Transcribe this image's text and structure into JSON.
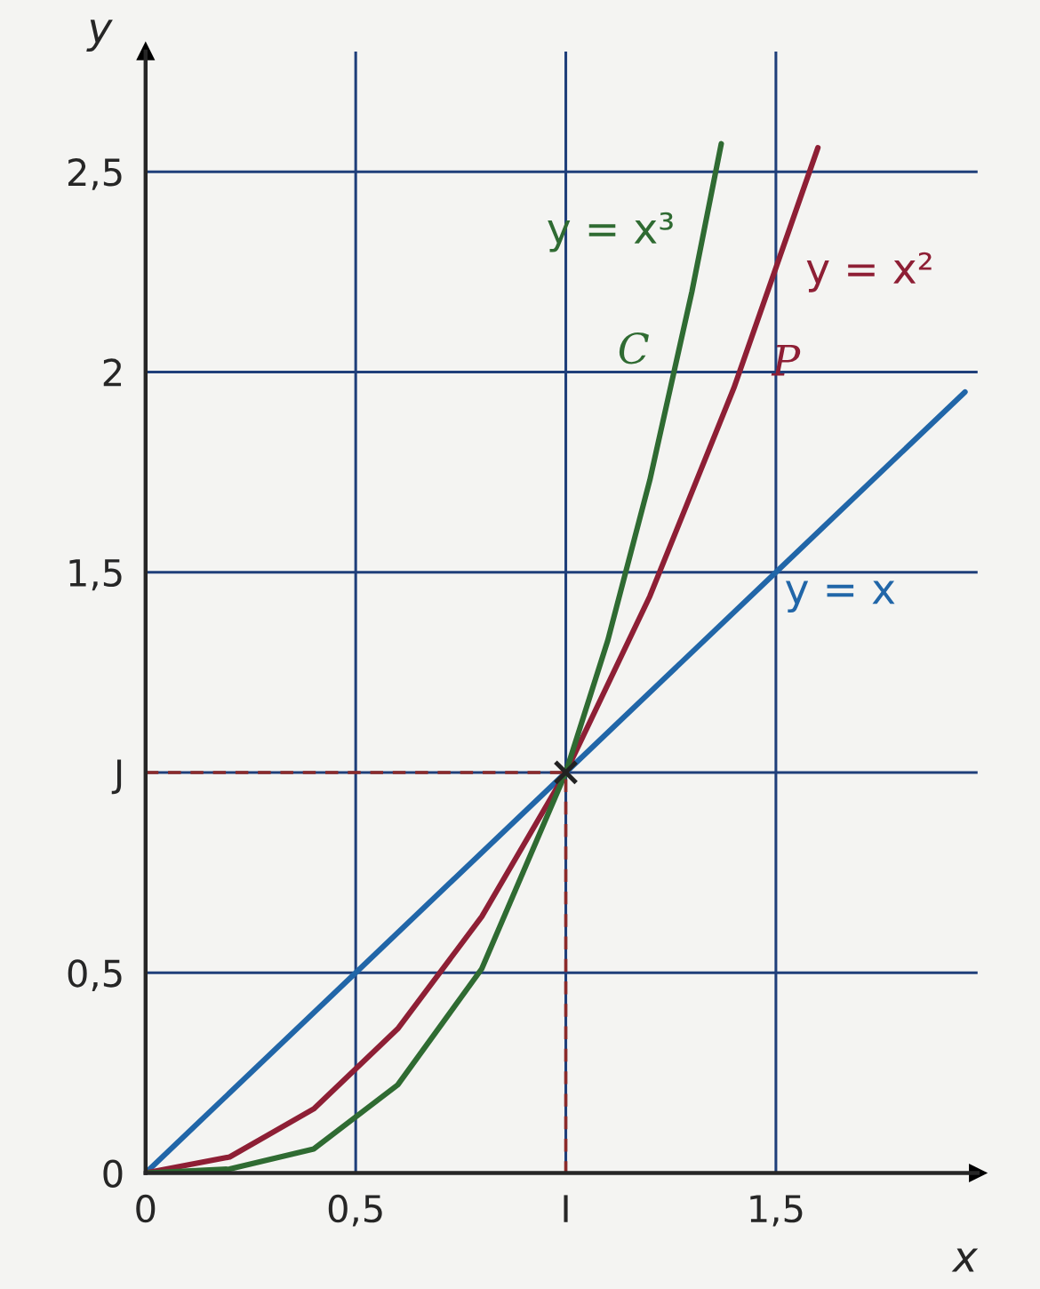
{
  "chart_data": {
    "type": "line",
    "xlabel": "x",
    "ylabel": "y",
    "xlim": [
      0,
      1.98
    ],
    "ylim": [
      0,
      2.8
    ],
    "xticks": [
      0,
      {
        "value": 0.5,
        "label": "0,5"
      },
      {
        "value": 1,
        "label": "I"
      },
      {
        "value": 1.5,
        "label": "1,5"
      }
    ],
    "yticks": [
      0,
      {
        "value": 0.5,
        "label": "0,5"
      },
      {
        "value": 1,
        "label": "J"
      },
      {
        "value": 1.5,
        "label": "1,5"
      },
      2,
      {
        "value": 2.5,
        "label": "2,5"
      }
    ],
    "grid": true,
    "series": [
      {
        "color": "#2166a8",
        "x": [
          0,
          0.5,
          1,
          1.5,
          1.95
        ],
        "values": [
          0,
          0.5,
          1,
          1.5,
          1.95
        ]
      },
      {
        "color": "#8e1f35",
        "x": [
          0,
          0.2,
          0.4,
          0.6,
          0.8,
          1,
          1.2,
          1.4,
          1.6
        ],
        "values": [
          0,
          0.04,
          0.16,
          0.36,
          0.64,
          1,
          1.44,
          1.96,
          2.56
        ]
      },
      {
        "color": "#2f6b32",
        "x": [
          0,
          0.2,
          0.4,
          0.6,
          0.8,
          1,
          1.1,
          1.2,
          1.3,
          1.37
        ],
        "values": [
          0,
          0.01,
          0.06,
          0.22,
          0.51,
          1,
          1.33,
          1.73,
          2.2,
          2.57
        ]
      },
      {
        "color": "#8b2a2a",
        "x": [
          0,
          1,
          1
        ],
        "values": [
          1,
          1,
          0
        ],
        "line_style": "dashed"
      },
      {
        "type": "scatter",
        "color": "#222222",
        "x": [
          1
        ],
        "values": [
          1
        ],
        "marker": "cross"
      }
    ],
    "annotations": [
      {
        "text": "y = x³",
        "x": 1.33,
        "y": 2.35
      },
      {
        "text": "C",
        "x": 1.27,
        "y": 2.05
      },
      {
        "text": "y = x²",
        "x": 1.5,
        "y": 2.25
      },
      {
        "text": "P",
        "x": 1.42,
        "y": 2.02
      },
      {
        "text": "y = x",
        "x": 1.45,
        "y": 1.45
      }
    ]
  }
}
